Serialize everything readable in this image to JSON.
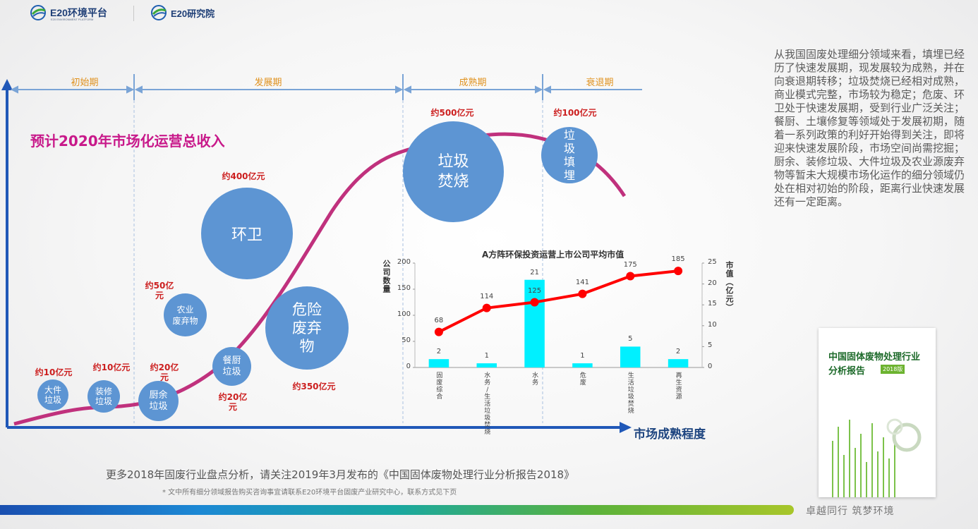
{
  "header": {
    "logo1_text": "E20环境平台",
    "logo1_sub": "E20 ENVIRONMENT PLATFORM",
    "logo2_text": "E20研究院"
  },
  "phases": [
    "初始期",
    "发展期",
    "成熟期",
    "衰退期"
  ],
  "headline": "预计2020年市场化运营总收入",
  "x_axis_label": "市场成熟程度",
  "bubbles": [
    {
      "text": "大件\n垃圾",
      "value": "约10亿元"
    },
    {
      "text": "装修\n垃圾",
      "value": "约10亿元"
    },
    {
      "text": "厨余\n垃圾",
      "value": "约20亿\n元"
    },
    {
      "text": "农业\n废弃物",
      "value": "约50亿\n元"
    },
    {
      "text": "餐厨\n垃圾",
      "value": "约20亿\n元"
    },
    {
      "text": "环卫",
      "value": "约400亿元"
    },
    {
      "text": "危险\n废弃\n物",
      "value": "约350亿元"
    },
    {
      "text": "垃圾\n焚烧",
      "value": "约500亿元"
    },
    {
      "text": "垃\n圾\n填\n埋",
      "value": "约100亿元"
    }
  ],
  "chart_data": {
    "type": "bar",
    "title": "A方阵环保投资运营上市公司平均市值",
    "categories": [
      "固废综合",
      "水务/生活垃圾焚烧",
      "水务",
      "危废",
      "生活垃圾焚烧",
      "再生资源"
    ],
    "category_display": [
      "固\n废\n综\n合",
      "水\n务\n/\n生\n活\n垃\n圾\n焚\n烧",
      "水\n务",
      "危\n废",
      "生\n活\n垃\n圾\n焚\n烧",
      "再\n生\n资\n源"
    ],
    "series": [
      {
        "name": "公司数量",
        "type": "bar",
        "values": [
          2,
          1,
          21,
          1,
          5,
          2
        ],
        "axis": "right",
        "color": "#00f0ff"
      },
      {
        "name": "市值",
        "type": "line",
        "values": [
          68,
          114,
          125,
          141,
          175,
          185
        ],
        "axis": "left",
        "color": "#ff0000"
      }
    ],
    "y_left_label": "公司数量",
    "y_right_label": "市值（亿元）",
    "y_left_ticks": [
      "0",
      "50",
      "100",
      "150",
      "200"
    ],
    "y_right_ticks": [
      "0",
      "5",
      "10",
      "15",
      "20",
      "25"
    ],
    "ylim_left": [
      0,
      200
    ],
    "ylim_right": [
      0,
      25
    ]
  },
  "side_text": "从我国固废处理细分领域来看，填埋已经历了快速发展期，现发展较为成熟，并在向衰退期转移；垃圾焚烧已经相对成熟，商业模式完整，市场较为稳定；危废、环卫处于快速发展期，受到行业广泛关注；餐厨、土壤修复等领域处于发展初期，随着一系列政策的利好开始得到关注，即将迎来快速发展阶段，市场空间尚需挖掘；厨余、装修垃圾、大件垃圾及农业源废弃物等暂未大规模市场化运作的细分领域仍处在相对初始的阶段，距离行业快速发展还有一定距离。",
  "book": {
    "title_line1": "中国固体废物处理行业",
    "title_line2": "分析报告",
    "badge": "2018版"
  },
  "footer": {
    "line1": "更多2018年固废行业盘点分析，请关注2019年3月发布的《中国固体废物处理行业分析报告2018》",
    "line2": "* 文中所有细分领域报告购买咨询事宜请联系E20环境平台固废产业研究中心，联系方式见下页",
    "slogan": "卓越同行 筑梦环境"
  },
  "colors": {
    "curve": "#c0317d",
    "axis": "#2058b8",
    "phase_line": "#7aa4d6",
    "bubble": "#5d95d3",
    "value_label": "#cc1f1f",
    "headline": "#c8198a"
  }
}
